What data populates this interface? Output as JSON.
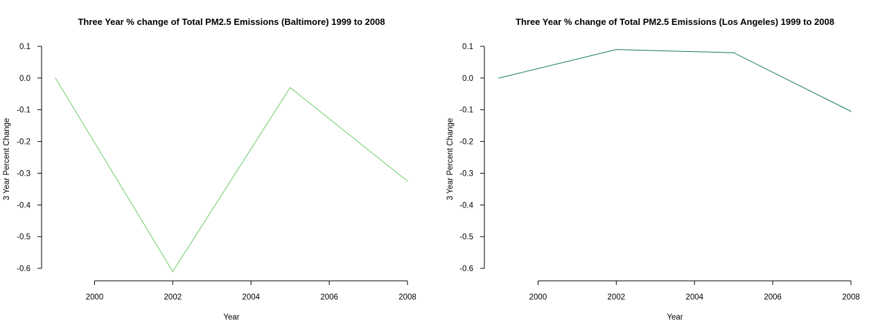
{
  "chart_data": [
    {
      "type": "line",
      "title": "Three Year % change of Total PM2.5 Emissions (Baltimore) 1999 to 2008",
      "xlabel": "Year",
      "ylabel": "3 Year Percent Change",
      "x": [
        1999,
        2002,
        2005,
        2008
      ],
      "series": [
        {
          "values": [
            0.0,
            -0.61,
            -0.03,
            -0.325
          ]
        }
      ],
      "xticks": [
        2000,
        2002,
        2004,
        2006,
        2008
      ],
      "yticks": [
        0.1,
        0.0,
        -0.1,
        -0.2,
        -0.3,
        -0.4,
        -0.5,
        -0.6
      ],
      "ytick_labels": [
        "0.1",
        "0.0",
        "-0.1",
        "-0.2",
        "-0.3",
        "-0.4",
        "-0.5",
        "-0.6"
      ],
      "xlim": [
        1999,
        2008
      ],
      "ylim": [
        -0.6,
        0.1
      ],
      "grid": false,
      "line_color": "#66cc66"
    },
    {
      "type": "line",
      "title": "Three Year % change of Total PM2.5 Emissions (Los Angeles) 1999 to 2008",
      "xlabel": "Year",
      "ylabel": "3 Year Percent Change",
      "x": [
        1999,
        2002,
        2005,
        2008
      ],
      "series": [
        {
          "values": [
            0.0,
            0.09,
            0.08,
            -0.105
          ]
        }
      ],
      "xticks": [
        2000,
        2002,
        2004,
        2006,
        2008
      ],
      "yticks": [
        0.1,
        0.0,
        -0.1,
        -0.2,
        -0.3,
        -0.4,
        -0.5,
        -0.6
      ],
      "ytick_labels": [
        "0.1",
        "0.0",
        "-0.1",
        "-0.2",
        "-0.3",
        "-0.4",
        "-0.5",
        "-0.6"
      ],
      "xlim": [
        1999,
        2008
      ],
      "ylim": [
        -0.6,
        0.1
      ],
      "grid": false,
      "line_color": "#117755"
    }
  ]
}
